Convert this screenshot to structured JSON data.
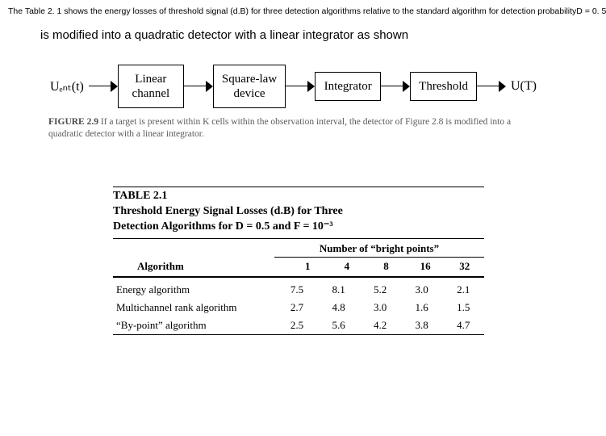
{
  "top_caption": "The Table 2. 1 shows the energy losses of threshold signal (d.B) for three detection algorithms relative to the standard algorithm for detection probabilityD = 0. 5",
  "subline": "is modified into a quadratic detector with a linear integrator as shown",
  "diagram": {
    "input_label": "Uₑₙₜ(t)",
    "output_label": "U(T)",
    "blocks": [
      "Linear\nchannel",
      "Square-law\ndevice",
      "Integrator",
      "Threshold"
    ]
  },
  "figure_caption_strong": "FIGURE 2.9",
  "figure_caption_rest": "  If a target is present within K cells within the observation interval, the detector of Figure 2.8 is modified into a quadratic detector with a linear integrator.",
  "table": {
    "heading_line1": "TABLE 2.1",
    "heading_line2": "Threshold Energy Signal Losses (d.B) for Three",
    "heading_line3": "Detection Algorithms for D = 0.5 and F = 10⁻³",
    "group_header": "Number of “bright points”",
    "alg_header": "Algorithm",
    "columns": [
      "1",
      "4",
      "8",
      "16",
      "32"
    ],
    "rows": [
      {
        "label": "Energy algorithm",
        "values": [
          "7.5",
          "8.1",
          "5.2",
          "3.0",
          "2.1"
        ]
      },
      {
        "label": "Multichannel rank algorithm",
        "values": [
          "2.7",
          "4.8",
          "3.0",
          "1.6",
          "1.5"
        ]
      },
      {
        "label": "“By-point” algorithm",
        "values": [
          "2.5",
          "5.6",
          "4.2",
          "3.8",
          "4.7"
        ]
      }
    ]
  }
}
